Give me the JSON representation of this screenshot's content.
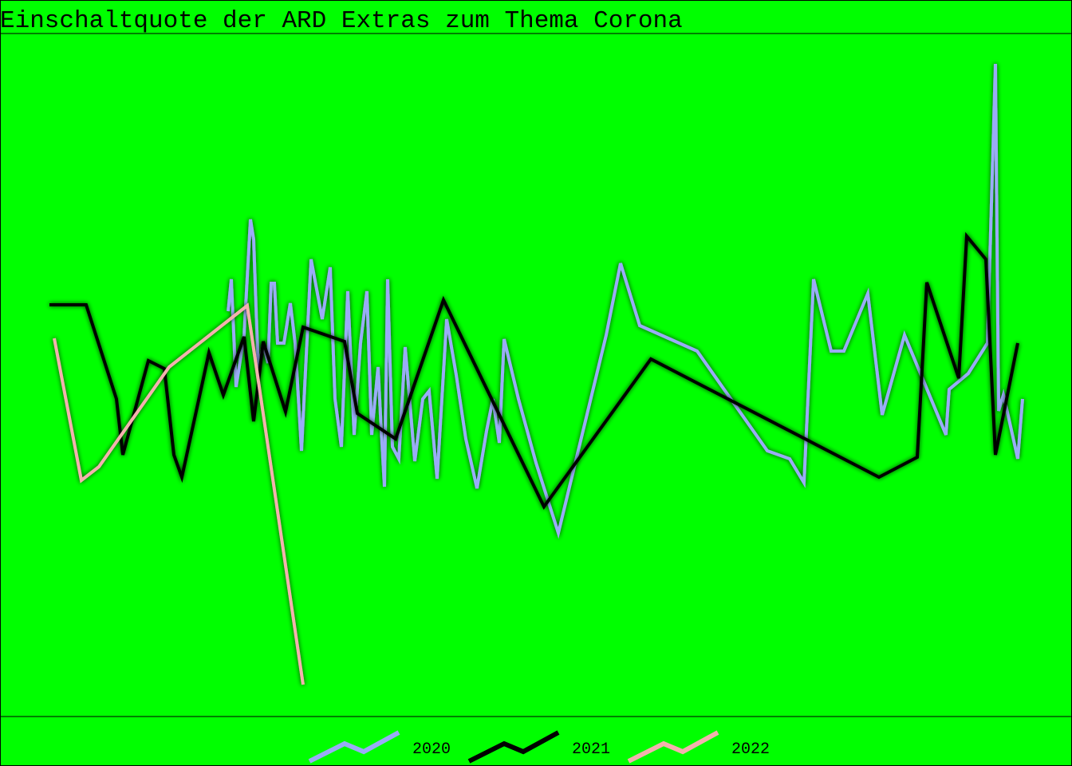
{
  "chart_data": {
    "type": "line",
    "title": "Einschaltquote der ARD Extras zum Thema Corona",
    "background": "#00ff00",
    "xlim": [
      0,
      134.4
    ],
    "ylim": [
      0,
      85.6
    ],
    "series": [
      {
        "name": "2020",
        "color": "#9aabf7",
        "x": [
          28.6,
          29.0,
          29.6,
          30.6,
          31.4,
          31.8,
          32.4,
          33.0,
          33.6,
          34.0,
          34.4,
          34.8,
          35.6,
          36.4,
          37.0,
          37.8,
          39.0,
          40.4,
          41.4,
          42.0,
          42.8,
          43.6,
          44.4,
          45.2,
          46.0,
          46.6,
          47.4,
          47.8,
          48.2,
          48.6,
          49.2,
          50.0,
          50.8,
          52.0,
          53.0,
          53.8,
          54.8,
          56.0,
          57.2,
          58.4,
          59.8,
          61.0,
          61.8,
          62.6,
          63.2,
          65.0,
          67.2,
          70.0,
          76.0,
          77.8,
          80.2,
          87.4,
          96.2,
          99.0,
          100.8,
          102.0,
          104.2,
          105.8,
          108.8,
          110.6,
          113.4,
          118.6,
          119.0,
          121.4,
          123.8,
          124.8,
          125.2,
          125.8,
          126.6,
          127.6,
          128.2
        ],
        "values": [
          50.8,
          54.8,
          41.3,
          47.8,
          62.3,
          59.8,
          42.8,
          46.8,
          44.3,
          54.3,
          54.3,
          46.8,
          46.8,
          51.8,
          46.8,
          33.3,
          57.3,
          49.8,
          56.3,
          39.8,
          33.8,
          53.3,
          35.3,
          46.8,
          53.3,
          35.3,
          43.8,
          35.8,
          28.8,
          54.8,
          33.8,
          32.3,
          46.3,
          32.0,
          39.8,
          40.8,
          29.8,
          49.8,
          42.8,
          34.8,
          28.6,
          35.8,
          39.8,
          34.3,
          47.3,
          39.8,
          31.8,
          23.0,
          47.8,
          56.8,
          49.0,
          45.8,
          33.3,
          32.3,
          29.3,
          54.8,
          45.8,
          45.8,
          53.0,
          37.8,
          47.8,
          35.3,
          41.0,
          43.0,
          46.8,
          81.8,
          38.3,
          40.3,
          36.8,
          32.3,
          39.8
        ]
      },
      {
        "name": "2021",
        "color": "#000000",
        "x": [
          6.2,
          10.8,
          14.6,
          15.4,
          18.6,
          20.6,
          21.8,
          22.8,
          26.2,
          28.0,
          30.6,
          31.8,
          33.0,
          35.8,
          38.0,
          43.2,
          44.8,
          49.6,
          55.6,
          68.2,
          81.6,
          110.2,
          115.0,
          116.2,
          120.2,
          121.2,
          123.6,
          124.8,
          127.6
        ],
        "values": [
          51.6,
          51.6,
          39.8,
          32.8,
          44.6,
          43.6,
          32.8,
          30.0,
          45.6,
          40.3,
          47.6,
          37.0,
          47.0,
          38.2,
          48.8,
          47.0,
          38.0,
          34.8,
          52.2,
          26.3,
          44.8,
          30.0,
          32.5,
          54.4,
          42.4,
          60.2,
          57.3,
          32.8,
          46.8
        ]
      },
      {
        "name": "2022",
        "color": "#f4b1ae",
        "x": [
          6.8,
          10.2,
          12.4,
          21.2,
          31.0,
          38.0
        ],
        "values": [
          47.4,
          29.6,
          31.3,
          43.8,
          51.5,
          4.0
        ]
      }
    ]
  }
}
